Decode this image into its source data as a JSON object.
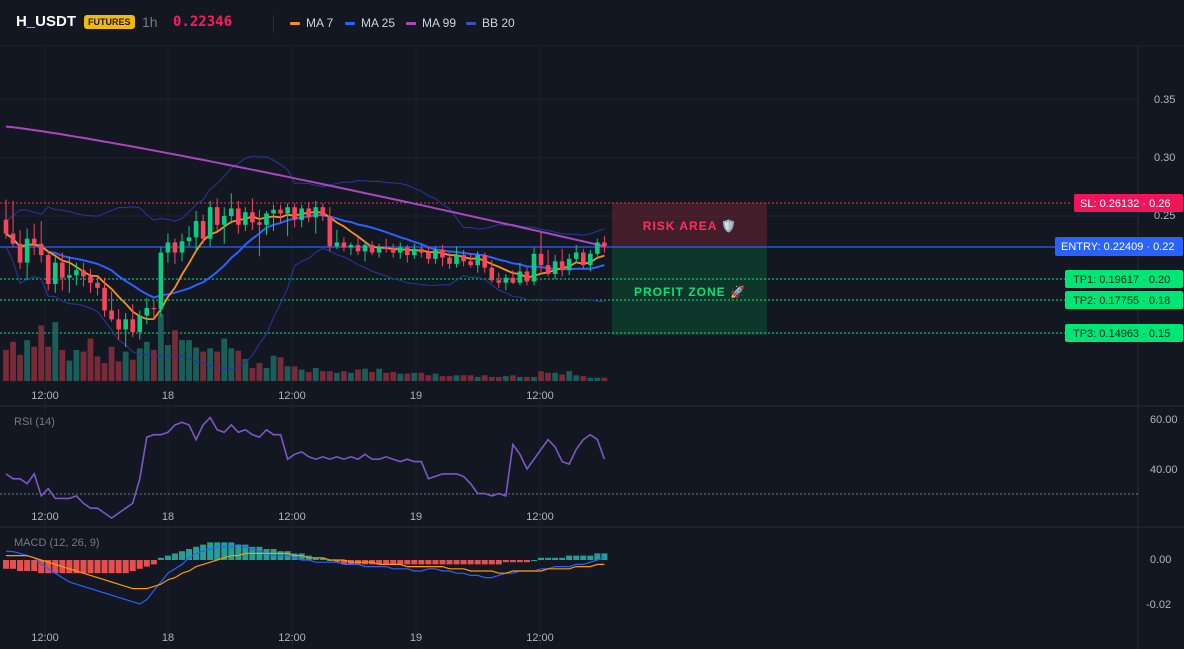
{
  "header": {
    "symbol": "H_USDT",
    "badge": "FUTURES",
    "timeframe": "1h",
    "price": "0.22346",
    "legends": [
      {
        "label": "MA 7",
        "color": "#f7931a"
      },
      {
        "label": "MA 25",
        "color": "#2962ff"
      },
      {
        "label": "MA 99",
        "color": "#ab47bc"
      },
      {
        "label": "BB 20",
        "color": "#3f51b5"
      }
    ]
  },
  "colors": {
    "up": "#0ecb81",
    "down": "#f6465d",
    "ma7": "#f7931a",
    "ma25": "#2962ff",
    "ma99": "#ab47bc",
    "bb": "#283593",
    "sl": "#f23645",
    "entry": "#2962ff",
    "tp": "#00e676"
  },
  "price_axis": {
    "ticks": [
      "0.35",
      "0.30",
      "0.25",
      "0.20",
      "0.15"
    ]
  },
  "time_axis": {
    "ticks": [
      "12:00",
      "18",
      "12:00",
      "19",
      "12:00"
    ]
  },
  "levels": {
    "sl": "SL: 0.26132 · 0.26",
    "entry": "ENTRY: 0.22409 · 0.22",
    "tp1": "TP1: 0.19617 · 0.20",
    "tp2": "TP2: 0.17755 · 0.18",
    "tp3": "TP3: 0.14963 · 0.15"
  },
  "zones": {
    "risk": "RISK AREA 🛡️",
    "profit": "PROFIT ZONE 🚀"
  },
  "rsi": {
    "label": "RSI (14)",
    "ticks": [
      "60.00",
      "40.00"
    ]
  },
  "macd": {
    "label": "MACD (12, 26, 9)",
    "ticks": [
      "0.00",
      "-0.02"
    ]
  },
  "chart_data": {
    "type": "candlestick",
    "start_time": "2023-11-17 09:00",
    "interval": "1h",
    "y_range": [
      0.115,
      0.395
    ],
    "candles": [
      [
        0.247,
        0.263,
        0.232,
        0.236
      ],
      [
        0.236,
        0.262,
        0.225,
        0.228
      ],
      [
        0.228,
        0.239,
        0.208,
        0.213
      ],
      [
        0.213,
        0.24,
        0.199,
        0.232
      ],
      [
        0.232,
        0.244,
        0.219,
        0.228
      ],
      [
        0.228,
        0.246,
        0.213,
        0.219
      ],
      [
        0.219,
        0.222,
        0.191,
        0.196
      ],
      [
        0.196,
        0.218,
        0.189,
        0.213
      ],
      [
        0.213,
        0.221,
        0.191,
        0.201
      ],
      [
        0.201,
        0.218,
        0.189,
        0.203
      ],
      [
        0.203,
        0.213,
        0.195,
        0.207
      ],
      [
        0.207,
        0.213,
        0.194,
        0.202
      ],
      [
        0.202,
        0.208,
        0.189,
        0.197
      ],
      [
        0.197,
        0.201,
        0.187,
        0.193
      ],
      [
        0.193,
        0.201,
        0.17,
        0.175
      ],
      [
        0.175,
        0.19,
        0.166,
        0.168
      ],
      [
        0.168,
        0.176,
        0.152,
        0.16
      ],
      [
        0.16,
        0.173,
        0.146,
        0.168
      ],
      [
        0.168,
        0.18,
        0.154,
        0.158
      ],
      [
        0.158,
        0.175,
        0.152,
        0.171
      ],
      [
        0.171,
        0.185,
        0.164,
        0.177
      ],
      [
        0.177,
        0.183,
        0.168,
        0.176
      ],
      [
        0.176,
        0.225,
        0.17,
        0.221
      ],
      [
        0.221,
        0.236,
        0.213,
        0.229
      ],
      [
        0.229,
        0.232,
        0.212,
        0.221
      ],
      [
        0.221,
        0.236,
        0.214,
        0.23
      ],
      [
        0.23,
        0.242,
        0.226,
        0.233
      ],
      [
        0.233,
        0.254,
        0.221,
        0.246
      ],
      [
        0.246,
        0.251,
        0.228,
        0.232
      ],
      [
        0.232,
        0.262,
        0.226,
        0.257
      ],
      [
        0.257,
        0.264,
        0.238,
        0.243
      ],
      [
        0.243,
        0.257,
        0.228,
        0.25
      ],
      [
        0.25,
        0.268,
        0.244,
        0.256
      ],
      [
        0.256,
        0.262,
        0.236,
        0.243
      ],
      [
        0.243,
        0.257,
        0.238,
        0.253
      ],
      [
        0.253,
        0.264,
        0.239,
        0.245
      ],
      [
        0.245,
        0.255,
        0.218,
        0.243
      ],
      [
        0.243,
        0.254,
        0.235,
        0.252
      ],
      [
        0.252,
        0.259,
        0.238,
        0.255
      ],
      [
        0.255,
        0.259,
        0.245,
        0.252
      ],
      [
        0.252,
        0.26,
        0.234,
        0.257
      ],
      [
        0.257,
        0.26,
        0.241,
        0.247
      ],
      [
        0.247,
        0.259,
        0.241,
        0.256
      ],
      [
        0.256,
        0.261,
        0.245,
        0.249
      ],
      [
        0.249,
        0.262,
        0.236,
        0.257
      ],
      [
        0.257,
        0.26,
        0.246,
        0.25
      ],
      [
        0.25,
        0.257,
        0.222,
        0.226
      ],
      [
        0.226,
        0.239,
        0.224,
        0.229
      ],
      [
        0.229,
        0.233,
        0.222,
        0.225
      ],
      [
        0.225,
        0.229,
        0.219,
        0.227
      ],
      [
        0.227,
        0.233,
        0.219,
        0.222
      ],
      [
        0.222,
        0.23,
        0.214,
        0.227
      ],
      [
        0.227,
        0.23,
        0.219,
        0.221
      ],
      [
        0.221,
        0.228,
        0.217,
        0.225
      ],
      [
        0.225,
        0.232,
        0.221,
        0.224
      ],
      [
        0.224,
        0.228,
        0.217,
        0.221
      ],
      [
        0.221,
        0.229,
        0.216,
        0.225
      ],
      [
        0.225,
        0.227,
        0.213,
        0.219
      ],
      [
        0.219,
        0.228,
        0.216,
        0.224
      ],
      [
        0.224,
        0.228,
        0.217,
        0.221
      ],
      [
        0.221,
        0.226,
        0.212,
        0.216
      ],
      [
        0.216,
        0.226,
        0.212,
        0.223
      ],
      [
        0.223,
        0.227,
        0.21,
        0.217
      ],
      [
        0.217,
        0.221,
        0.208,
        0.212
      ],
      [
        0.212,
        0.226,
        0.209,
        0.219
      ],
      [
        0.219,
        0.223,
        0.21,
        0.214
      ],
      [
        0.214,
        0.22,
        0.209,
        0.211
      ],
      [
        0.211,
        0.222,
        0.205,
        0.219
      ],
      [
        0.219,
        0.221,
        0.205,
        0.209
      ],
      [
        0.209,
        0.215,
        0.197,
        0.199
      ],
      [
        0.199,
        0.205,
        0.193,
        0.197
      ],
      [
        0.197,
        0.204,
        0.191,
        0.201
      ],
      [
        0.201,
        0.207,
        0.196,
        0.197
      ],
      [
        0.197,
        0.213,
        0.195,
        0.206
      ],
      [
        0.206,
        0.209,
        0.195,
        0.198
      ],
      [
        0.198,
        0.225,
        0.195,
        0.22
      ],
      [
        0.22,
        0.237,
        0.204,
        0.211
      ],
      [
        0.211,
        0.223,
        0.202,
        0.204
      ],
      [
        0.204,
        0.219,
        0.2,
        0.214
      ],
      [
        0.214,
        0.224,
        0.202,
        0.207
      ],
      [
        0.207,
        0.22,
        0.203,
        0.216
      ],
      [
        0.216,
        0.227,
        0.213,
        0.221
      ],
      [
        0.221,
        0.224,
        0.208,
        0.211
      ],
      [
        0.211,
        0.223,
        0.206,
        0.22
      ],
      [
        0.22,
        0.232,
        0.216,
        0.229
      ],
      [
        0.229,
        0.234,
        0.221,
        0.226
      ]
    ],
    "volume": [
      0.38,
      0.48,
      0.32,
      0.5,
      0.42,
      0.68,
      0.42,
      0.72,
      0.38,
      0.25,
      0.38,
      0.36,
      0.52,
      0.3,
      0.22,
      0.42,
      0.24,
      0.36,
      0.26,
      0.4,
      0.48,
      0.38,
      0.82,
      0.44,
      0.62,
      0.5,
      0.5,
      0.41,
      0.36,
      0.4,
      0.36,
      0.52,
      0.4,
      0.37,
      0.27,
      0.16,
      0.22,
      0.16,
      0.31,
      0.29,
      0.18,
      0.18,
      0.14,
      0.11,
      0.16,
      0.12,
      0.12,
      0.1,
      0.12,
      0.1,
      0.14,
      0.15,
      0.11,
      0.15,
      0.1,
      0.11,
      0.09,
      0.09,
      0.1,
      0.1,
      0.07,
      0.09,
      0.06,
      0.06,
      0.07,
      0.07,
      0.07,
      0.05,
      0.07,
      0.05,
      0.05,
      0.06,
      0.07,
      0.05,
      0.05,
      0.05,
      0.12,
      0.1,
      0.1,
      0.08,
      0.12,
      0.07,
      0.06,
      0.04,
      0.04,
      0.04
    ],
    "rsi": [
      38,
      36,
      36,
      34,
      38,
      29,
      32,
      28,
      28,
      28,
      29,
      26,
      24,
      24,
      22,
      20,
      22,
      24,
      26,
      36,
      53,
      54,
      54,
      55,
      58,
      59,
      58,
      52,
      58,
      61,
      56,
      55,
      58,
      55,
      56,
      54,
      53,
      56,
      54,
      54,
      44,
      46,
      47,
      45,
      44,
      45,
      44,
      45,
      44,
      45,
      44,
      46,
      44,
      44,
      45,
      44,
      43,
      44,
      43,
      43,
      36,
      37,
      38,
      38,
      38,
      37,
      34,
      30,
      30,
      29,
      30,
      29,
      50,
      46,
      40,
      44,
      48,
      52,
      49,
      43,
      42,
      48,
      52,
      54,
      52,
      44
    ],
    "macd": [
      0.004,
      0.0038,
      0.003,
      0.002,
      0.001,
      -0.002,
      -0.004,
      -0.006,
      -0.008,
      -0.01,
      -0.011,
      -0.012,
      -0.013,
      -0.014,
      -0.015,
      -0.016,
      -0.017,
      -0.018,
      -0.019,
      -0.02,
      -0.018,
      -0.014,
      -0.01,
      -0.006,
      -0.004,
      -0.002,
      0.001,
      0.003,
      0.004,
      0.005,
      0.006,
      0.006,
      0.006,
      0.007,
      0.006,
      0.005,
      0.004,
      0.003,
      0.002,
      0.002,
      0.002,
      0.001,
      0.0,
      0.0,
      -0.001,
      -0.001,
      -0.001,
      -0.001,
      -0.002,
      -0.002,
      -0.002,
      -0.003,
      -0.003,
      -0.003,
      -0.003,
      -0.004,
      -0.004,
      -0.004,
      -0.005,
      -0.005,
      -0.004,
      -0.004,
      -0.005,
      -0.005,
      -0.006,
      -0.006,
      -0.007,
      -0.007,
      -0.008,
      -0.008,
      -0.007,
      -0.006,
      -0.006,
      -0.005,
      -0.005,
      -0.005,
      -0.004,
      -0.004,
      -0.003,
      -0.003,
      -0.003,
      -0.002,
      -0.002,
      -0.001,
      0.0,
      0.001
    ],
    "signal": [
      0.002,
      0.002,
      0.002,
      0.002,
      0.001,
      0.0,
      -0.001,
      -0.002,
      -0.003,
      -0.004,
      -0.005,
      -0.006,
      -0.007,
      -0.008,
      -0.009,
      -0.01,
      -0.011,
      -0.012,
      -0.013,
      -0.013,
      -0.013,
      -0.012,
      -0.011,
      -0.009,
      -0.008,
      -0.006,
      -0.005,
      -0.003,
      -0.002,
      -0.001,
      0.0,
      0.001,
      0.002,
      0.002,
      0.003,
      0.003,
      0.003,
      0.003,
      0.003,
      0.003,
      0.003,
      0.002,
      0.002,
      0.001,
      0.001,
      0.001,
      0.0,
      0.0,
      0.0,
      -0.001,
      -0.001,
      -0.001,
      -0.001,
      -0.002,
      -0.002,
      -0.002,
      -0.002,
      -0.003,
      -0.003,
      -0.003,
      -0.003,
      -0.003,
      -0.003,
      -0.004,
      -0.004,
      -0.004,
      -0.005,
      -0.005,
      -0.005,
      -0.005,
      -0.006,
      -0.006,
      -0.005,
      -0.005,
      -0.005,
      -0.005,
      -0.005,
      -0.004,
      -0.004,
      -0.004,
      -0.004,
      -0.003,
      -0.003,
      -0.003,
      -0.002,
      -0.002
    ],
    "hist": [
      -0.004,
      -0.004,
      -0.005,
      -0.005,
      -0.005,
      -0.006,
      -0.006,
      -0.006,
      -0.006,
      -0.006,
      -0.006,
      -0.006,
      -0.006,
      -0.006,
      -0.006,
      -0.006,
      -0.006,
      -0.006,
      -0.005,
      -0.004,
      -0.003,
      -0.002,
      0.001,
      0.002,
      0.003,
      0.004,
      0.005,
      0.006,
      0.007,
      0.008,
      0.008,
      0.008,
      0.008,
      0.007,
      0.007,
      0.006,
      0.006,
      0.005,
      0.005,
      0.004,
      0.004,
      0.003,
      0.003,
      0.002,
      0.001,
      0.001,
      0.0,
      -0.001,
      -0.002,
      -0.002,
      -0.002,
      -0.002,
      -0.002,
      -0.002,
      -0.002,
      -0.002,
      -0.002,
      -0.002,
      -0.002,
      -0.002,
      -0.002,
      -0.002,
      -0.002,
      -0.002,
      -0.002,
      -0.002,
      -0.002,
      -0.002,
      -0.002,
      -0.002,
      -0.002,
      -0.001,
      -0.001,
      -0.001,
      -0.001,
      0.0,
      0.001,
      0.001,
      0.001,
      0.001,
      0.002,
      0.002,
      0.002,
      0.002,
      0.003,
      0.003
    ]
  }
}
